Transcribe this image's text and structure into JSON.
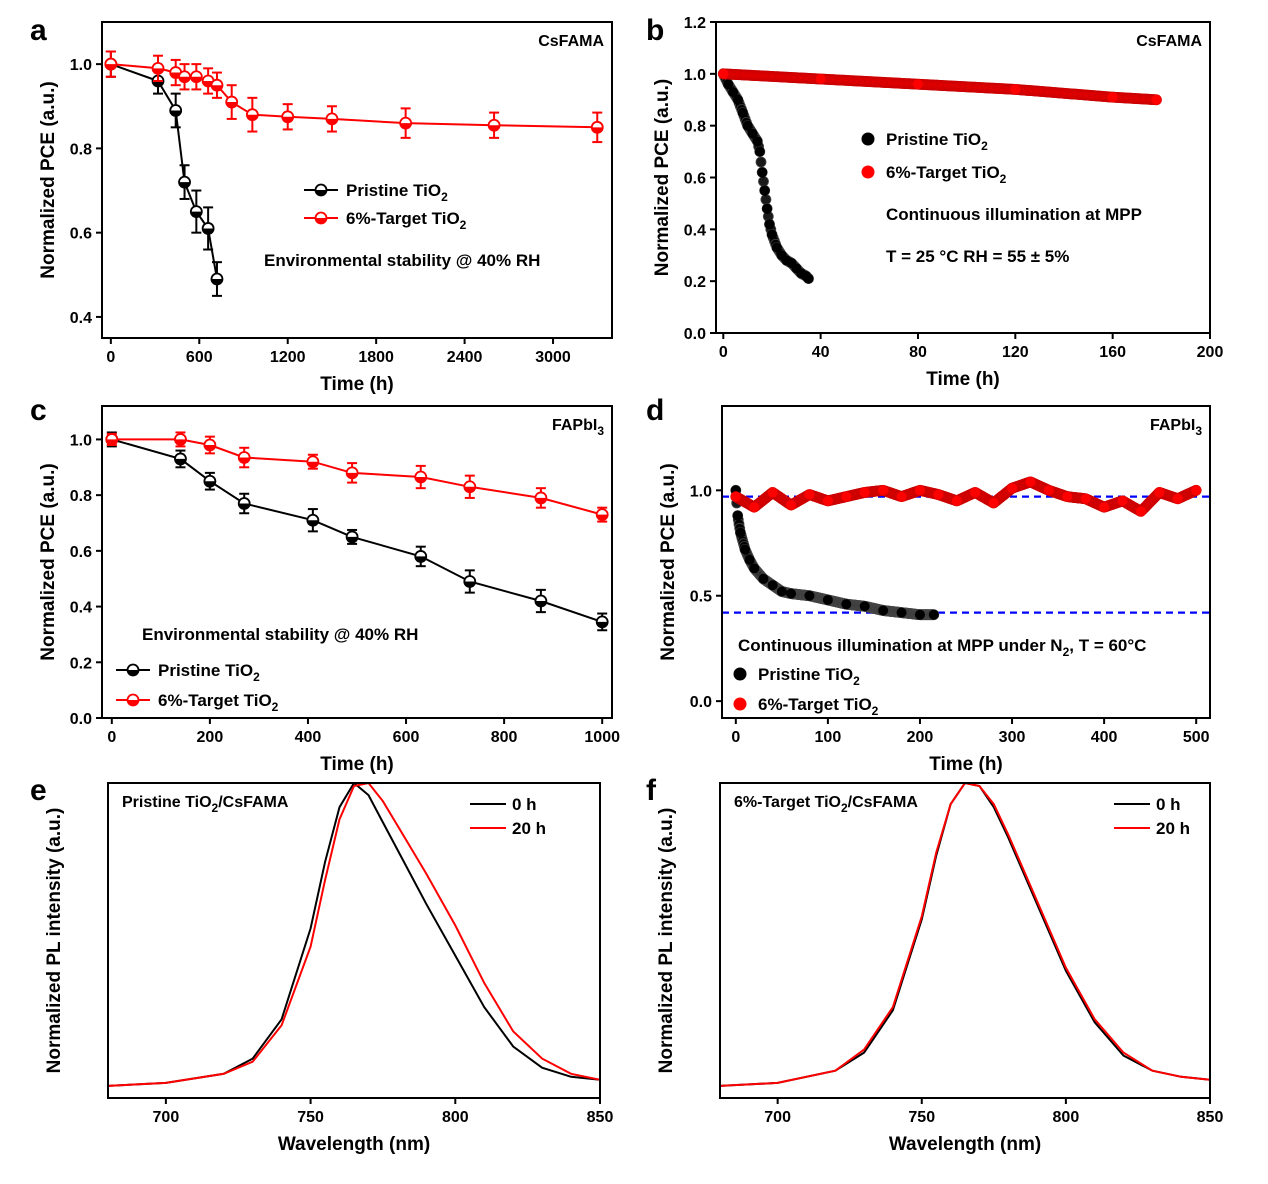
{
  "chart_data": [
    {
      "panel": "a",
      "type": "line",
      "corner_label": "CsFAMA",
      "annotation": "Environmental stability @ 40% RH",
      "xlabel": "Time (h)",
      "ylabel": "Normalized PCE (a.u.)",
      "xlim": [
        -60,
        3400
      ],
      "ylim": [
        0.35,
        1.1
      ],
      "xticks": [
        0,
        600,
        1200,
        1800,
        2400,
        3000
      ],
      "yticks": [
        0.4,
        0.6,
        0.8,
        1.0
      ],
      "xtick_labels": [
        "0",
        "600",
        "1200",
        "1800",
        "2400",
        "3000"
      ],
      "ytick_labels": [
        "0.4",
        "0.6",
        "0.8",
        "1.0"
      ],
      "legend_position": "center",
      "series": [
        {
          "name": "Pristine TiO",
          "name_sub": "2",
          "color": "#000000",
          "marker": "half-filled-circle",
          "x": [
            0,
            320,
            440,
            500,
            580,
            660,
            720
          ],
          "y": [
            1.0,
            0.96,
            0.89,
            0.72,
            0.65,
            0.61,
            0.49
          ],
          "err": [
            0.03,
            0.03,
            0.04,
            0.04,
            0.05,
            0.05,
            0.04
          ]
        },
        {
          "name": "6%-Target TiO",
          "name_sub": "2",
          "color": "#ff0000",
          "marker": "half-filled-circle",
          "x": [
            0,
            320,
            440,
            500,
            580,
            660,
            720,
            820,
            960,
            1200,
            1500,
            2000,
            2600,
            3300
          ],
          "y": [
            1.0,
            0.99,
            0.98,
            0.97,
            0.97,
            0.96,
            0.95,
            0.91,
            0.88,
            0.875,
            0.87,
            0.86,
            0.855,
            0.85
          ],
          "err": [
            0.03,
            0.03,
            0.03,
            0.03,
            0.03,
            0.03,
            0.03,
            0.04,
            0.04,
            0.03,
            0.03,
            0.035,
            0.03,
            0.035
          ]
        }
      ]
    },
    {
      "panel": "b",
      "type": "scatter",
      "corner_label": "CsFAMA",
      "annotations": [
        "Continuous illumination at MPP",
        "T = 25 °C  RH = 55 ± 5%"
      ],
      "xlabel": "Time (h)",
      "ylabel": "Normalized PCE (a.u.)",
      "xlim": [
        -3,
        200
      ],
      "ylim": [
        0.0,
        1.2
      ],
      "xticks": [
        0,
        40,
        80,
        120,
        160,
        200
      ],
      "yticks": [
        0.0,
        0.2,
        0.4,
        0.6,
        0.8,
        1.0,
        1.2
      ],
      "xtick_labels": [
        "0",
        "40",
        "80",
        "120",
        "160",
        "200"
      ],
      "ytick_labels": [
        "0.0",
        "0.2",
        "0.4",
        "0.6",
        "0.8",
        "1.0",
        "1.2"
      ],
      "legend_position": "center-right",
      "series": [
        {
          "name": "Pristine TiO",
          "name_sub": "2",
          "color": "#000000",
          "marker": "sphere",
          "x": [
            0,
            2,
            4,
            6,
            8,
            10,
            12,
            14,
            15,
            16,
            17,
            18,
            19,
            20,
            22,
            24,
            26,
            28,
            30,
            32,
            34,
            35
          ],
          "y": [
            1.0,
            0.96,
            0.93,
            0.9,
            0.85,
            0.8,
            0.77,
            0.74,
            0.7,
            0.62,
            0.55,
            0.48,
            0.42,
            0.38,
            0.33,
            0.3,
            0.28,
            0.27,
            0.25,
            0.23,
            0.22,
            0.21
          ]
        },
        {
          "name": "6%-Target TiO",
          "name_sub": "2",
          "color": "#ff0000",
          "marker": "sphere",
          "x": [
            0,
            40,
            80,
            120,
            160,
            178
          ],
          "y": [
            1.0,
            0.98,
            0.96,
            0.94,
            0.91,
            0.9
          ]
        }
      ]
    },
    {
      "panel": "c",
      "type": "line",
      "corner_label": "FAPbI",
      "corner_label_sub": "3",
      "annotation": "Environmental stability @ 40% RH",
      "xlabel": "Time (h)",
      "ylabel": "Normalized PCE (a.u.)",
      "xlim": [
        -20,
        1020
      ],
      "ylim": [
        0.0,
        1.12
      ],
      "xticks": [
        0,
        200,
        400,
        600,
        800,
        1000
      ],
      "yticks": [
        0.0,
        0.2,
        0.4,
        0.6,
        0.8,
        1.0
      ],
      "xtick_labels": [
        "0",
        "200",
        "400",
        "600",
        "800",
        "1000"
      ],
      "ytick_labels": [
        "0.0",
        "0.2",
        "0.4",
        "0.6",
        "0.8",
        "1.0"
      ],
      "legend_position": "bottom-left",
      "series": [
        {
          "name": "Pristine TiO",
          "name_sub": "2",
          "color": "#000000",
          "marker": "half-filled-circle",
          "x": [
            0,
            140,
            200,
            270,
            410,
            490,
            630,
            730,
            875,
            1000
          ],
          "y": [
            1.0,
            0.93,
            0.85,
            0.77,
            0.71,
            0.65,
            0.58,
            0.49,
            0.42,
            0.345
          ],
          "err": [
            0.025,
            0.03,
            0.03,
            0.035,
            0.04,
            0.025,
            0.035,
            0.04,
            0.04,
            0.03
          ]
        },
        {
          "name": "6%-Target TiO",
          "name_sub": "2",
          "color": "#ff0000",
          "marker": "half-filled-circle",
          "x": [
            0,
            140,
            200,
            270,
            410,
            490,
            630,
            730,
            875,
            1000
          ],
          "y": [
            1.0,
            1.0,
            0.98,
            0.935,
            0.92,
            0.88,
            0.865,
            0.83,
            0.79,
            0.73
          ],
          "err": [
            0.02,
            0.025,
            0.03,
            0.035,
            0.025,
            0.035,
            0.04,
            0.04,
            0.035,
            0.025
          ]
        }
      ]
    },
    {
      "panel": "d",
      "type": "scatter",
      "corner_label": "FAPbI",
      "corner_label_sub": "3",
      "annotation": "Continuous illumination at MPP under N",
      "annotation_sub": "2",
      "annotation_tail": ", T = 60°C",
      "xlabel": "Time (h)",
      "ylabel": "Normalized PCE (a.u.)",
      "xlim": [
        -15,
        515
      ],
      "ylim": [
        -0.08,
        1.4
      ],
      "xticks": [
        0,
        100,
        200,
        300,
        400,
        500
      ],
      "yticks": [
        0.0,
        0.5,
        1.0
      ],
      "xtick_labels": [
        "0",
        "100",
        "200",
        "300",
        "400",
        "500"
      ],
      "ytick_labels": [
        "0.0",
        "0.5",
        "1.0"
      ],
      "reference_lines": [
        0.97,
        0.42
      ],
      "reference_color": "#0000ff",
      "legend_position": "bottom-left",
      "series": [
        {
          "name": "Pristine TiO",
          "name_sub": "2",
          "color": "#000000",
          "marker": "sphere",
          "x": [
            0,
            2,
            5,
            10,
            15,
            20,
            30,
            40,
            50,
            60,
            80,
            100,
            120,
            140,
            160,
            180,
            200,
            215
          ],
          "y": [
            1.0,
            0.88,
            0.8,
            0.72,
            0.67,
            0.63,
            0.58,
            0.55,
            0.52,
            0.51,
            0.5,
            0.48,
            0.46,
            0.45,
            0.43,
            0.42,
            0.41,
            0.41
          ]
        },
        {
          "name": "6%-Target TiO",
          "name_sub": "2",
          "color": "#ff0000",
          "marker": "sphere",
          "x": [
            0,
            20,
            40,
            60,
            80,
            100,
            120,
            140,
            160,
            180,
            200,
            220,
            240,
            260,
            280,
            300,
            320,
            340,
            360,
            380,
            400,
            420,
            440,
            460,
            480,
            500
          ],
          "y": [
            0.97,
            0.92,
            0.99,
            0.93,
            0.98,
            0.95,
            0.97,
            0.99,
            1.0,
            0.97,
            1.0,
            0.98,
            0.95,
            0.99,
            0.94,
            1.01,
            1.04,
            1.0,
            0.97,
            0.96,
            0.92,
            0.95,
            0.9,
            0.99,
            0.96,
            1.0
          ]
        }
      ]
    },
    {
      "panel": "e",
      "type": "line",
      "corner_label": "Pristine TiO",
      "corner_label_sub": "2",
      "corner_label_tail": "/CsFAMA",
      "xlabel": "Wavelength (nm)",
      "ylabel": "Normalized PL intensity (a.u.)",
      "xlim": [
        680,
        850
      ],
      "ylim": [
        -0.04,
        1.0
      ],
      "xticks": [
        700,
        750,
        800,
        850
      ],
      "xtick_labels": [
        "700",
        "750",
        "800",
        "850"
      ],
      "legend_position": "top-right",
      "series": [
        {
          "name": "0 h",
          "color": "#000000",
          "x": [
            680,
            700,
            720,
            730,
            740,
            750,
            755,
            760,
            765,
            770,
            775,
            780,
            790,
            800,
            810,
            820,
            830,
            840,
            850
          ],
          "y": [
            0.0,
            0.01,
            0.04,
            0.09,
            0.22,
            0.52,
            0.74,
            0.92,
            1.0,
            0.96,
            0.87,
            0.78,
            0.6,
            0.43,
            0.26,
            0.13,
            0.06,
            0.03,
            0.02
          ]
        },
        {
          "name": "20 h",
          "color": "#ff0000",
          "x": [
            680,
            700,
            720,
            730,
            740,
            750,
            755,
            760,
            765,
            770,
            775,
            780,
            790,
            800,
            810,
            820,
            830,
            840,
            850
          ],
          "y": [
            0.0,
            0.01,
            0.04,
            0.08,
            0.2,
            0.46,
            0.68,
            0.88,
            0.99,
            1.0,
            0.94,
            0.86,
            0.7,
            0.53,
            0.34,
            0.18,
            0.09,
            0.04,
            0.02
          ]
        }
      ]
    },
    {
      "panel": "f",
      "type": "line",
      "corner_label": "6%-Target TiO",
      "corner_label_sub": "2",
      "corner_label_tail": "/CsFAMA",
      "xlabel": "Wavelength (nm)",
      "ylabel": "Normalized PL intensity (a.u.)",
      "xlim": [
        680,
        850
      ],
      "ylim": [
        -0.04,
        1.0
      ],
      "xticks": [
        700,
        750,
        800,
        850
      ],
      "xtick_labels": [
        "700",
        "750",
        "800",
        "850"
      ],
      "legend_position": "top-right",
      "series": [
        {
          "name": "0 h",
          "color": "#000000",
          "x": [
            680,
            700,
            720,
            730,
            740,
            750,
            755,
            760,
            765,
            770,
            775,
            780,
            790,
            800,
            810,
            820,
            830,
            840,
            850
          ],
          "y": [
            0.0,
            0.01,
            0.05,
            0.11,
            0.25,
            0.55,
            0.76,
            0.93,
            1.0,
            0.99,
            0.92,
            0.82,
            0.6,
            0.38,
            0.21,
            0.1,
            0.05,
            0.03,
            0.02
          ]
        },
        {
          "name": "20 h",
          "color": "#ff0000",
          "x": [
            680,
            700,
            720,
            730,
            740,
            750,
            755,
            760,
            765,
            770,
            775,
            780,
            790,
            800,
            810,
            820,
            830,
            840,
            850
          ],
          "y": [
            0.0,
            0.01,
            0.05,
            0.12,
            0.26,
            0.56,
            0.77,
            0.93,
            1.0,
            0.99,
            0.93,
            0.83,
            0.61,
            0.39,
            0.22,
            0.11,
            0.05,
            0.03,
            0.02
          ]
        }
      ]
    }
  ]
}
